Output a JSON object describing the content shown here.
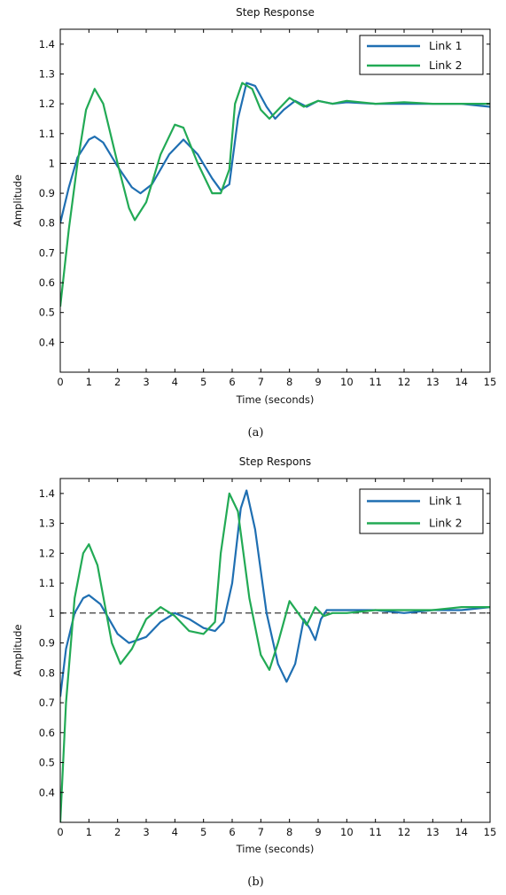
{
  "chart_data": [
    {
      "type": "line",
      "title": "Step Response",
      "caption": "(a)",
      "xlabel": "Time (seconds)",
      "ylabel": "Amplitude",
      "xlim": [
        0,
        15
      ],
      "ylim": [
        0.3,
        1.45
      ],
      "xticks": [
        "0",
        "1",
        "2",
        "3",
        "4",
        "5",
        "6",
        "7",
        "8",
        "9",
        "10",
        "11",
        "12",
        "13",
        "14",
        "15"
      ],
      "yticks": [
        "0.4",
        "0.5",
        "0.6",
        "0.7",
        "0.8",
        "0.9",
        "1",
        "1.1",
        "1.2",
        "1.3",
        "1.4"
      ],
      "reference_line": 1.0,
      "legend_position": "top-right",
      "series": [
        {
          "name": "Link 1",
          "color": "#1f6fb2",
          "points": [
            [
              0,
              0.8
            ],
            [
              0.3,
              0.92
            ],
            [
              0.6,
              1.02
            ],
            [
              1.0,
              1.08
            ],
            [
              1.2,
              1.09
            ],
            [
              1.5,
              1.07
            ],
            [
              2.0,
              0.99
            ],
            [
              2.5,
              0.92
            ],
            [
              2.8,
              0.9
            ],
            [
              3.2,
              0.93
            ],
            [
              3.8,
              1.03
            ],
            [
              4.3,
              1.08
            ],
            [
              4.8,
              1.03
            ],
            [
              5.3,
              0.95
            ],
            [
              5.6,
              0.91
            ],
            [
              5.9,
              0.93
            ],
            [
              6.2,
              1.15
            ],
            [
              6.5,
              1.27
            ],
            [
              6.8,
              1.26
            ],
            [
              7.2,
              1.19
            ],
            [
              7.5,
              1.15
            ],
            [
              7.8,
              1.18
            ],
            [
              8.2,
              1.21
            ],
            [
              8.6,
              1.19
            ],
            [
              9.0,
              1.21
            ],
            [
              9.5,
              1.2
            ],
            [
              10.0,
              1.205
            ],
            [
              11.0,
              1.2
            ],
            [
              12.0,
              1.2
            ],
            [
              13.0,
              1.2
            ],
            [
              14.0,
              1.2
            ],
            [
              15.0,
              1.19
            ]
          ]
        },
        {
          "name": "Link 2",
          "color": "#22aa55",
          "points": [
            [
              0,
              0.52
            ],
            [
              0.3,
              0.78
            ],
            [
              0.6,
              1.0
            ],
            [
              0.9,
              1.18
            ],
            [
              1.2,
              1.25
            ],
            [
              1.5,
              1.2
            ],
            [
              2.0,
              1.0
            ],
            [
              2.4,
              0.85
            ],
            [
              2.6,
              0.81
            ],
            [
              3.0,
              0.87
            ],
            [
              3.5,
              1.03
            ],
            [
              4.0,
              1.13
            ],
            [
              4.3,
              1.12
            ],
            [
              4.8,
              1.0
            ],
            [
              5.3,
              0.9
            ],
            [
              5.6,
              0.9
            ],
            [
              5.9,
              0.98
            ],
            [
              6.1,
              1.2
            ],
            [
              6.35,
              1.27
            ],
            [
              6.7,
              1.25
            ],
            [
              7.0,
              1.18
            ],
            [
              7.3,
              1.15
            ],
            [
              7.7,
              1.19
            ],
            [
              8.0,
              1.22
            ],
            [
              8.5,
              1.19
            ],
            [
              9.0,
              1.21
            ],
            [
              9.5,
              1.2
            ],
            [
              10.0,
              1.21
            ],
            [
              11.0,
              1.2
            ],
            [
              12.0,
              1.205
            ],
            [
              13.0,
              1.2
            ],
            [
              14.0,
              1.2
            ],
            [
              15.0,
              1.2
            ]
          ]
        }
      ]
    },
    {
      "type": "line",
      "title": "Step Respons",
      "caption": "(b)",
      "xlabel": "Time (seconds)",
      "ylabel": "Amplitude",
      "xlim": [
        0,
        15
      ],
      "ylim": [
        0.3,
        1.45
      ],
      "xticks": [
        "0",
        "1",
        "2",
        "3",
        "4",
        "5",
        "6",
        "7",
        "8",
        "9",
        "10",
        "11",
        "12",
        "13",
        "14",
        "15"
      ],
      "yticks": [
        "0.4",
        "0.5",
        "0.6",
        "0.7",
        "0.8",
        "0.9",
        "1",
        "1.1",
        "1.2",
        "1.3",
        "1.4"
      ],
      "reference_line": 1.0,
      "legend_position": "top-right",
      "series": [
        {
          "name": "Link 1",
          "color": "#1f6fb2",
          "points": [
            [
              0,
              0.72
            ],
            [
              0.2,
              0.88
            ],
            [
              0.5,
              1.0
            ],
            [
              0.8,
              1.05
            ],
            [
              1.0,
              1.06
            ],
            [
              1.4,
              1.03
            ],
            [
              2.0,
              0.93
            ],
            [
              2.4,
              0.9
            ],
            [
              3.0,
              0.92
            ],
            [
              3.5,
              0.97
            ],
            [
              4.0,
              1.0
            ],
            [
              4.5,
              0.98
            ],
            [
              5.0,
              0.95
            ],
            [
              5.4,
              0.94
            ],
            [
              5.7,
              0.97
            ],
            [
              6.0,
              1.1
            ],
            [
              6.3,
              1.35
            ],
            [
              6.5,
              1.41
            ],
            [
              6.8,
              1.28
            ],
            [
              7.2,
              1.0
            ],
            [
              7.6,
              0.83
            ],
            [
              7.9,
              0.77
            ],
            [
              8.2,
              0.83
            ],
            [
              8.5,
              0.98
            ],
            [
              8.7,
              0.95
            ],
            [
              8.9,
              0.91
            ],
            [
              9.1,
              0.98
            ],
            [
              9.3,
              1.01
            ],
            [
              10.0,
              1.01
            ],
            [
              11.0,
              1.01
            ],
            [
              12.0,
              1.0
            ],
            [
              13.0,
              1.01
            ],
            [
              14.0,
              1.01
            ],
            [
              15.0,
              1.02
            ]
          ]
        },
        {
          "name": "Link 2",
          "color": "#22aa55",
          "points": [
            [
              0,
              0.3
            ],
            [
              0.2,
              0.7
            ],
            [
              0.5,
              1.05
            ],
            [
              0.8,
              1.2
            ],
            [
              1.0,
              1.23
            ],
            [
              1.3,
              1.16
            ],
            [
              1.8,
              0.9
            ],
            [
              2.1,
              0.83
            ],
            [
              2.5,
              0.88
            ],
            [
              3.0,
              0.98
            ],
            [
              3.5,
              1.02
            ],
            [
              4.0,
              0.99
            ],
            [
              4.5,
              0.94
            ],
            [
              5.0,
              0.93
            ],
            [
              5.4,
              0.97
            ],
            [
              5.6,
              1.2
            ],
            [
              5.9,
              1.4
            ],
            [
              6.2,
              1.34
            ],
            [
              6.6,
              1.05
            ],
            [
              7.0,
              0.86
            ],
            [
              7.3,
              0.81
            ],
            [
              7.6,
              0.9
            ],
            [
              8.0,
              1.04
            ],
            [
              8.3,
              1.0
            ],
            [
              8.6,
              0.96
            ],
            [
              8.9,
              1.02
            ],
            [
              9.2,
              0.99
            ],
            [
              9.5,
              1.0
            ],
            [
              10.0,
              1.0
            ],
            [
              11.0,
              1.01
            ],
            [
              12.0,
              1.01
            ],
            [
              13.0,
              1.01
            ],
            [
              14.0,
              1.02
            ],
            [
              15.0,
              1.02
            ]
          ]
        }
      ]
    }
  ]
}
